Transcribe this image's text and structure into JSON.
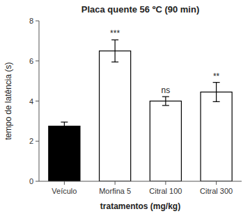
{
  "chart_data": {
    "type": "bar",
    "title": "Placa quente 56 ºC  (90 min)",
    "xlabel": "tratamentos (mg/kg)",
    "ylabel": "tempo de latência (s)",
    "categories": [
      "Veículo",
      "Morfina 5",
      "Citral 100",
      "Citral 300"
    ],
    "values": [
      2.75,
      6.5,
      4.0,
      4.45
    ],
    "errors": [
      0.2,
      0.55,
      0.22,
      0.48
    ],
    "colors": [
      "#000000",
      "#ffffff",
      "#ffffff",
      "#ffffff"
    ],
    "annotations": [
      null,
      "***",
      "ns",
      "**"
    ],
    "ylim": [
      0,
      8
    ],
    "yticks": [
      0,
      2,
      4,
      6,
      8
    ],
    "grid": false
  }
}
